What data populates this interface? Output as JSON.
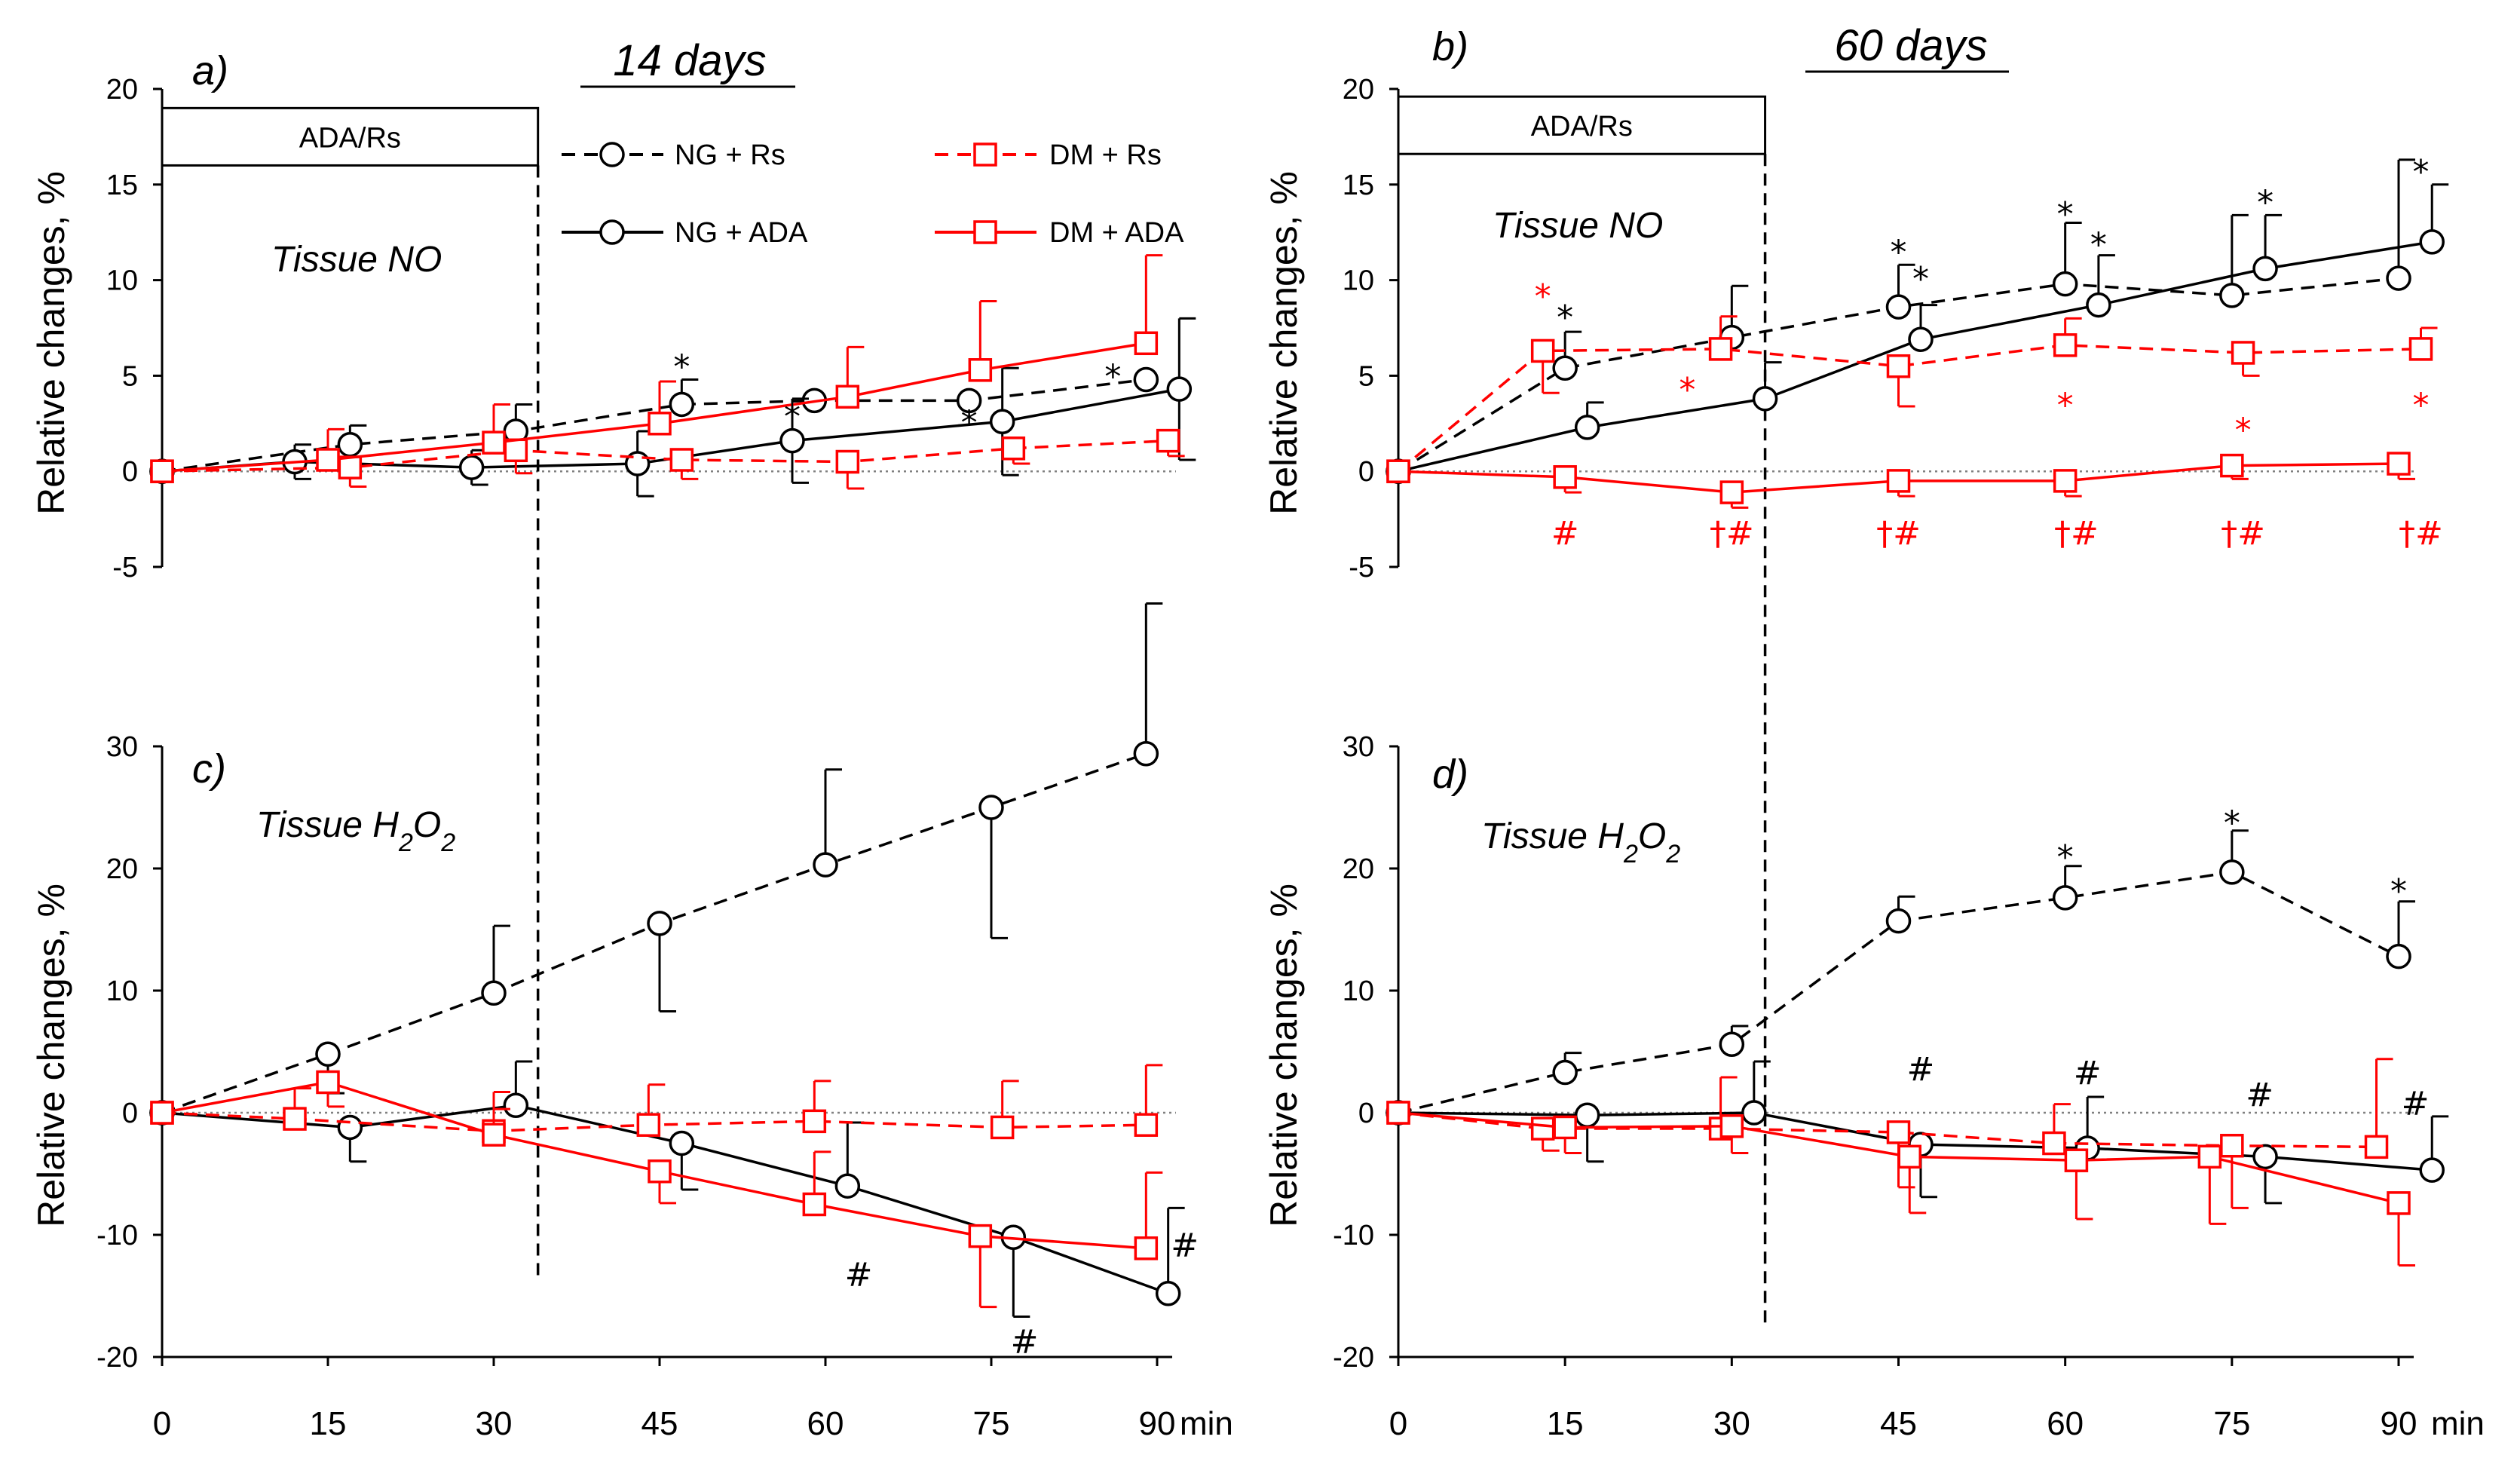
{
  "figure": {
    "days_a": "14 days",
    "days_b": "60 days",
    "box_label": "ADA/Rs",
    "x_unit": "min",
    "ylabel": "Relative changes, %",
    "colors": {
      "ng": "#000000",
      "dm": "#ff0000"
    }
  },
  "legend": [
    {
      "label": "NG + Rs",
      "marker": "circle",
      "dash": true,
      "color": "#000000"
    },
    {
      "label": "DM + Rs",
      "marker": "square",
      "dash": true,
      "color": "#ff0000"
    },
    {
      "label": "NG + ADA",
      "marker": "circle",
      "dash": false,
      "color": "#000000"
    },
    {
      "label": "DM + ADA",
      "marker": "square",
      "dash": false,
      "color": "#ff0000"
    }
  ],
  "chart_data": [
    {
      "panel": "a)",
      "type": "line",
      "title": "Tissue NO",
      "days": "14 days",
      "ylabel": "Relative changes, %",
      "ylim": [
        -5,
        20
      ],
      "yticks": [
        -5,
        0,
        5,
        10,
        15,
        20
      ],
      "xlim": [
        0,
        90
      ],
      "xticks": [
        0,
        15,
        30,
        45,
        60,
        75,
        90
      ],
      "vline_x": 34,
      "box_label": "ADA/Rs",
      "box_x": [
        0,
        34
      ],
      "box_y": [
        16,
        19
      ],
      "series": [
        {
          "name": "NG + Rs",
          "color": "#000000",
          "dash": true,
          "marker": "circle",
          "x": [
            0,
            17,
            32,
            47,
            59,
            73,
            89
          ],
          "y": [
            0,
            1.4,
            2.1,
            3.5,
            3.7,
            3.7,
            4.8
          ],
          "err": [
            0,
            1.0,
            1.4,
            1.3,
            0,
            0,
            0
          ],
          "err_dir": "up"
        },
        {
          "name": "NG + ADA",
          "color": "#000000",
          "dash": false,
          "marker": "circle",
          "x": [
            0,
            12,
            28,
            43,
            57,
            76,
            92
          ],
          "y": [
            0,
            0.5,
            0.2,
            0.4,
            1.6,
            2.6,
            4.3
          ],
          "err": [
            0,
            0.9,
            0.9,
            1.7,
            2.2,
            2.8,
            3.7
          ],
          "err_dir": "both"
        },
        {
          "name": "DM + Rs",
          "color": "#ff0000",
          "dash": true,
          "marker": "square",
          "x": [
            0,
            17,
            32,
            47,
            62,
            77,
            91
          ],
          "y": [
            0,
            0.2,
            1.1,
            0.6,
            0.5,
            1.2,
            1.6
          ],
          "err": [
            0,
            1.0,
            1.2,
            1.0,
            1.4,
            0.8,
            0.8
          ],
          "err_dir": "down"
        },
        {
          "name": "DM + ADA",
          "color": "#ff0000",
          "dash": false,
          "marker": "square",
          "x": [
            0,
            15,
            30,
            45,
            62,
            74,
            89
          ],
          "y": [
            0,
            0.6,
            1.5,
            2.5,
            3.9,
            5.3,
            6.7
          ],
          "err": [
            0,
            1.6,
            2.0,
            2.2,
            2.6,
            3.6,
            4.6
          ],
          "err_dir": "up"
        }
      ],
      "annotations": [
        {
          "text": "*",
          "x": 47,
          "y": 5.5,
          "color": "#000000"
        },
        {
          "text": "*",
          "x": 57,
          "y": 2.9,
          "color": "#000000"
        },
        {
          "text": "*",
          "x": 73,
          "y": 2.6,
          "color": "#000000"
        },
        {
          "text": "*",
          "x": 86,
          "y": 5.0,
          "color": "#000000"
        }
      ]
    },
    {
      "panel": "b)",
      "type": "line",
      "title": "Tissue NO",
      "days": "60 days",
      "ylabel": "Relative changes, %",
      "ylim": [
        -5,
        20
      ],
      "yticks": [
        -5,
        0,
        5,
        10,
        15,
        20
      ],
      "xlim": [
        0,
        90
      ],
      "xticks": [
        0,
        15,
        30,
        45,
        60,
        75,
        90
      ],
      "vline_x": 33,
      "box_label": "ADA/Rs",
      "box_x": [
        0,
        33
      ],
      "box_y": [
        16.6,
        19.6
      ],
      "series": [
        {
          "name": "NG + Rs",
          "color": "#000000",
          "dash": true,
          "marker": "circle",
          "x": [
            0,
            15,
            30,
            45,
            60,
            75,
            90
          ],
          "y": [
            0,
            5.4,
            7.0,
            8.6,
            9.8,
            9.2,
            10.1
          ],
          "err": [
            0,
            1.9,
            2.7,
            2.2,
            3.2,
            4.2,
            6.2
          ],
          "err_dir": "up"
        },
        {
          "name": "NG + ADA",
          "color": "#000000",
          "dash": false,
          "marker": "circle",
          "x": [
            0,
            17,
            33,
            47,
            63,
            78,
            93
          ],
          "y": [
            0,
            2.3,
            3.8,
            6.9,
            8.7,
            10.6,
            12.0
          ],
          "err": [
            0,
            1.3,
            1.9,
            1.8,
            2.6,
            2.8,
            3.0
          ],
          "err_dir": "up"
        },
        {
          "name": "DM + Rs",
          "color": "#ff0000",
          "dash": true,
          "marker": "square",
          "x": [
            0,
            13,
            29,
            45,
            60,
            76,
            92
          ],
          "y": [
            0,
            6.3,
            6.4,
            5.5,
            6.6,
            6.2,
            6.4
          ],
          "err": [
            0,
            2.2,
            1.7,
            2.1,
            1.4,
            1.2,
            1.1
          ],
          "err_dir": "mixed"
        },
        {
          "name": "DM + ADA",
          "color": "#ff0000",
          "dash": false,
          "marker": "square",
          "x": [
            0,
            15,
            30,
            45,
            60,
            75,
            90
          ],
          "y": [
            0,
            -0.3,
            -1.1,
            -0.5,
            -0.5,
            0.3,
            0.4
          ],
          "err": [
            0,
            0.8,
            0.8,
            0.8,
            0.8,
            0.7,
            0.8
          ],
          "err_dir": "down"
        }
      ],
      "annotations": [
        {
          "text": "*",
          "x": 13,
          "y": 9.2,
          "color": "#ff0000"
        },
        {
          "text": "*",
          "x": 15,
          "y": 8.1,
          "color": "#000000"
        },
        {
          "text": "*",
          "x": 26,
          "y": 4.3,
          "color": "#ff0000"
        },
        {
          "text": "*",
          "x": 45,
          "y": 11.5,
          "color": "#000000"
        },
        {
          "text": "*",
          "x": 47,
          "y": 10.1,
          "color": "#000000"
        },
        {
          "text": "*",
          "x": 60,
          "y": 13.5,
          "color": "#000000"
        },
        {
          "text": "*",
          "x": 63,
          "y": 11.9,
          "color": "#000000"
        },
        {
          "text": "*",
          "x": 78,
          "y": 14.1,
          "color": "#000000"
        },
        {
          "text": "*",
          "x": 92,
          "y": 15.7,
          "color": "#000000"
        },
        {
          "text": "*",
          "x": 60,
          "y": 3.5,
          "color": "#ff0000"
        },
        {
          "text": "*",
          "x": 76,
          "y": 2.2,
          "color": "#ff0000"
        },
        {
          "text": "*",
          "x": 92,
          "y": 3.5,
          "color": "#ff0000"
        },
        {
          "text": "#",
          "x": 15,
          "y": -3.2,
          "color": "#ff0000"
        },
        {
          "text": "†#",
          "x": 30,
          "y": -3.2,
          "color": "#ff0000"
        },
        {
          "text": "†#",
          "x": 45,
          "y": -3.2,
          "color": "#ff0000"
        },
        {
          "text": "†#",
          "x": 61,
          "y": -3.2,
          "color": "#ff0000"
        },
        {
          "text": "†#",
          "x": 76,
          "y": -3.2,
          "color": "#ff0000"
        },
        {
          "text": "†#",
          "x": 92,
          "y": -3.2,
          "color": "#ff0000"
        }
      ]
    },
    {
      "panel": "c)",
      "type": "line",
      "title": "Tissue H2O2",
      "ylabel": "Relative changes, %",
      "ylim": [
        -20,
        30
      ],
      "yticks": [
        -20,
        -10,
        0,
        10,
        20,
        30
      ],
      "xlim": [
        0,
        90
      ],
      "xticks": [
        0,
        15,
        30,
        45,
        60,
        75,
        90
      ],
      "series": [
        {
          "name": "NG + Rs",
          "color": "#000000",
          "dash": true,
          "marker": "circle",
          "x": [
            0,
            15,
            30,
            45,
            60,
            75,
            89
          ],
          "y": [
            0,
            4.8,
            9.8,
            15.5,
            20.3,
            25.0,
            29.4
          ],
          "err": [
            0,
            3.2,
            5.5,
            7.2,
            7.8,
            10.7,
            12.3
          ],
          "err_dir": "mixed"
        },
        {
          "name": "NG + ADA",
          "color": "#000000",
          "dash": false,
          "marker": "circle",
          "x": [
            0,
            17,
            32,
            47,
            62,
            77,
            91
          ],
          "y": [
            0,
            -1.2,
            0.6,
            -2.5,
            -6.0,
            -10.2,
            -14.8
          ],
          "err": [
            0,
            2.8,
            3.6,
            3.8,
            5.2,
            6.5,
            7.0
          ],
          "err_dir": "mixed"
        },
        {
          "name": "DM + Rs",
          "color": "#ff0000",
          "dash": true,
          "marker": "square",
          "x": [
            0,
            12,
            30,
            44,
            59,
            76,
            89
          ],
          "y": [
            0,
            -0.5,
            -1.5,
            -1.0,
            -0.7,
            -1.2,
            -1.0
          ],
          "err": [
            0,
            2.5,
            3.2,
            3.3,
            3.3,
            3.8,
            4.9
          ],
          "err_dir": "up"
        },
        {
          "name": "DM + ADA",
          "color": "#ff0000",
          "dash": false,
          "marker": "square",
          "x": [
            0,
            15,
            30,
            45,
            59,
            74,
            89
          ],
          "y": [
            0,
            2.5,
            -1.8,
            -4.8,
            -7.5,
            -10.1,
            -11.1
          ],
          "err": [
            0,
            2.0,
            2.1,
            2.6,
            4.3,
            5.8,
            6.2
          ],
          "err_dir": "mixed"
        }
      ],
      "annotations": [
        {
          "text": "#",
          "x": 63,
          "y": -13.2,
          "color": "#000000"
        },
        {
          "text": "#",
          "x": 78,
          "y": -18.7,
          "color": "#000000"
        },
        {
          "text": "#",
          "x": 92.5,
          "y": -10.8,
          "color": "#000000"
        }
      ]
    },
    {
      "panel": "d)",
      "type": "line",
      "title": "Tissue H2O2",
      "ylabel": "Relative changes, %",
      "ylim": [
        -20,
        30
      ],
      "yticks": [
        -20,
        -10,
        0,
        10,
        20,
        30
      ],
      "xlim": [
        0,
        90
      ],
      "xticks": [
        0,
        15,
        30,
        45,
        60,
        75,
        90
      ],
      "series": [
        {
          "name": "NG + Rs",
          "color": "#000000",
          "dash": true,
          "marker": "circle",
          "x": [
            0,
            15,
            30,
            45,
            60,
            75,
            90
          ],
          "y": [
            0,
            3.3,
            5.6,
            15.7,
            17.6,
            19.7,
            12.8
          ],
          "err": [
            0,
            1.6,
            1.5,
            2.0,
            2.6,
            3.4,
            4.5
          ],
          "err_dir": "up"
        },
        {
          "name": "NG + ADA",
          "color": "#000000",
          "dash": false,
          "marker": "circle",
          "x": [
            0,
            17,
            32,
            47,
            62,
            78,
            93
          ],
          "y": [
            0,
            -0.2,
            0.0,
            -2.6,
            -2.9,
            -3.6,
            -4.7
          ],
          "err": [
            0,
            3.8,
            4.2,
            4.3,
            4.2,
            3.8,
            4.4
          ],
          "err_dir": "mixed"
        },
        {
          "name": "DM + Rs",
          "color": "#ff0000",
          "dash": true,
          "marker": "square",
          "x": [
            0,
            13,
            29,
            45,
            59,
            75,
            88
          ],
          "y": [
            0,
            -1.3,
            -1.3,
            -1.6,
            -2.5,
            -2.7,
            -2.8
          ],
          "err": [
            0,
            1.8,
            4.2,
            4.5,
            3.2,
            5.1,
            7.2
          ],
          "err_dir": "mixed"
        },
        {
          "name": "DM + ADA",
          "color": "#ff0000",
          "dash": false,
          "marker": "square",
          "x": [
            0,
            15,
            30,
            46,
            61,
            73,
            90
          ],
          "y": [
            0,
            -1.2,
            -1.1,
            -3.6,
            -3.9,
            -3.6,
            -7.4
          ],
          "err": [
            0,
            2.1,
            2.2,
            4.6,
            4.8,
            5.5,
            5.1
          ],
          "err_dir": "down"
        }
      ],
      "annotations": [
        {
          "text": "*",
          "x": 60,
          "y": 21.0,
          "color": "#000000"
        },
        {
          "text": "*",
          "x": 75,
          "y": 23.8,
          "color": "#000000"
        },
        {
          "text": "*",
          "x": 90,
          "y": 18.2,
          "color": "#000000"
        },
        {
          "text": "#",
          "x": 47,
          "y": 3.6,
          "color": "#000000"
        },
        {
          "text": "#",
          "x": 62,
          "y": 3.3,
          "color": "#000000"
        },
        {
          "text": "#",
          "x": 77.5,
          "y": 1.5,
          "color": "#000000"
        },
        {
          "text": "#",
          "x": 91.5,
          "y": 0.8,
          "color": "#000000"
        }
      ]
    }
  ]
}
